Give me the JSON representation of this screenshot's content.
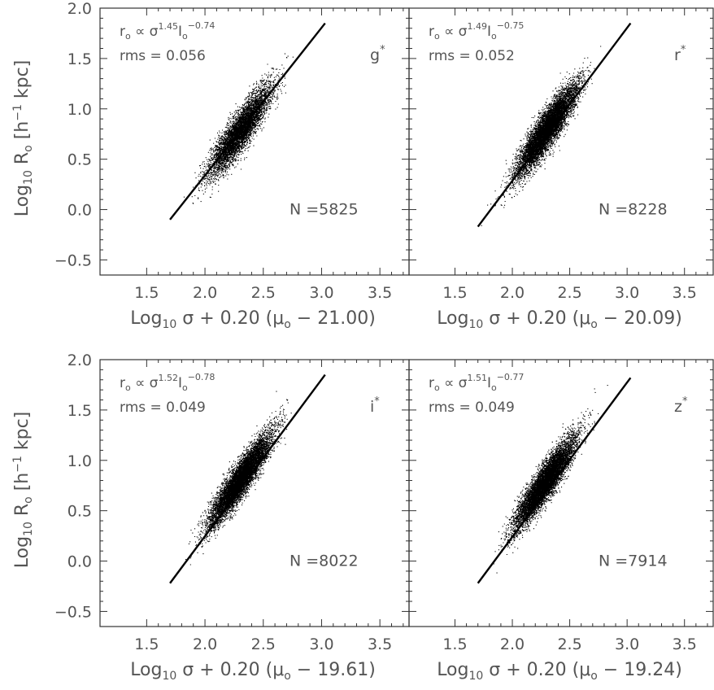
{
  "chart_data": [
    {
      "type": "scatter",
      "band": "g",
      "band_sup": "*",
      "relation": {
        "prefix": "r",
        "prefix_sub": "o",
        "op": " ∝ σ",
        "exp1": "1.45",
        "mid": "I",
        "mid_sub": "o",
        "exp2": "−0.74"
      },
      "rms_text": "rms = 0.056",
      "count_text": "N =5825",
      "n": 5825,
      "xlabel": {
        "pre": "Log",
        "sub": "10",
        "post": " σ + 0.20 (μ",
        "sub2": "o",
        "post2": " − 21.00)"
      },
      "ylabel": {
        "pre": "Log",
        "sub": "10",
        "mid": " R",
        "sub2": "o",
        "post": " [h",
        "sup": "−1",
        "post2": " kpc]"
      },
      "xlim": [
        1.1,
        3.75
      ],
      "ylim": [
        -0.65,
        2.0
      ],
      "xticks": [
        "1.5",
        "2.0",
        "2.5",
        "3.0",
        "3.5"
      ],
      "yticks": [
        "−0.5",
        "0.0",
        "0.5",
        "1.0",
        "1.5",
        "2.0"
      ],
      "fit_line": {
        "x": [
          1.7,
          3.03
        ],
        "y": [
          -0.1,
          1.85
        ]
      },
      "cloud": {
        "x_center": 2.3,
        "x_spread": 0.13,
        "scatter": 0.1,
        "intercept": -2.6,
        "slope": 1.47
      }
    },
    {
      "type": "scatter",
      "band": "r",
      "band_sup": "*",
      "relation": {
        "prefix": "r",
        "prefix_sub": "o",
        "op": " ∝ σ",
        "exp1": "1.49",
        "mid": "I",
        "mid_sub": "o",
        "exp2": "−0.75"
      },
      "rms_text": "rms = 0.052",
      "count_text": "N =8228",
      "n": 8228,
      "xlabel": {
        "pre": "Log",
        "sub": "10",
        "post": " σ + 0.20 (μ",
        "sub2": "o",
        "post2": " − 20.09)"
      },
      "ylabel": null,
      "xlim": [
        1.1,
        3.75
      ],
      "ylim": [
        -0.65,
        2.0
      ],
      "xticks": [
        "1.5",
        "2.0",
        "2.5",
        "3.0",
        "3.5"
      ],
      "yticks": [],
      "fit_line": {
        "x": [
          1.7,
          3.03
        ],
        "y": [
          -0.17,
          1.85
        ]
      },
      "cloud": {
        "x_center": 2.3,
        "x_spread": 0.13,
        "scatter": 0.095,
        "intercept": -2.7,
        "slope": 1.52
      }
    },
    {
      "type": "scatter",
      "band": "i",
      "band_sup": "*",
      "relation": {
        "prefix": "r",
        "prefix_sub": "o",
        "op": " ∝ σ",
        "exp1": "1.52",
        "mid": "I",
        "mid_sub": "o",
        "exp2": "−0.78"
      },
      "rms_text": "rms = 0.049",
      "count_text": "N =8022",
      "n": 8022,
      "xlabel": {
        "pre": "Log",
        "sub": "10",
        "post": " σ + 0.20 (μ",
        "sub2": "o",
        "post2": " − 19.61)"
      },
      "ylabel": {
        "pre": "Log",
        "sub": "10",
        "mid": " R",
        "sub2": "o",
        "post": " [h",
        "sup": "−1",
        "post2": " kpc]"
      },
      "xlim": [
        1.1,
        3.75
      ],
      "ylim": [
        -0.65,
        2.0
      ],
      "xticks": [
        "1.5",
        "2.0",
        "2.5",
        "3.0",
        "3.5"
      ],
      "yticks": [
        "−0.5",
        "0.0",
        "0.5",
        "1.0",
        "1.5",
        "2.0"
      ],
      "fit_line": {
        "x": [
          1.7,
          3.03
        ],
        "y": [
          -0.22,
          1.85
        ]
      },
      "cloud": {
        "x_center": 2.3,
        "x_spread": 0.13,
        "scatter": 0.09,
        "intercept": -2.78,
        "slope": 1.56
      }
    },
    {
      "type": "scatter",
      "band": "z",
      "band_sup": "*",
      "relation": {
        "prefix": "r",
        "prefix_sub": "o",
        "op": " ∝ σ",
        "exp1": "1.51",
        "mid": "I",
        "mid_sub": "o",
        "exp2": "−0.77"
      },
      "rms_text": "rms = 0.049",
      "count_text": "N =7914",
      "n": 7914,
      "xlabel": {
        "pre": "Log",
        "sub": "10",
        "post": " σ + 0.20 (μ",
        "sub2": "o",
        "post2": " − 19.24)"
      },
      "ylabel": null,
      "xlim": [
        1.1,
        3.75
      ],
      "ylim": [
        -0.65,
        2.0
      ],
      "xticks": [
        "1.5",
        "2.0",
        "2.5",
        "3.0",
        "3.5"
      ],
      "yticks": [],
      "fit_line": {
        "x": [
          1.7,
          3.03
        ],
        "y": [
          -0.22,
          1.82
        ]
      },
      "cloud": {
        "x_center": 2.28,
        "x_spread": 0.13,
        "scatter": 0.09,
        "intercept": -2.78,
        "slope": 1.56
      }
    }
  ]
}
